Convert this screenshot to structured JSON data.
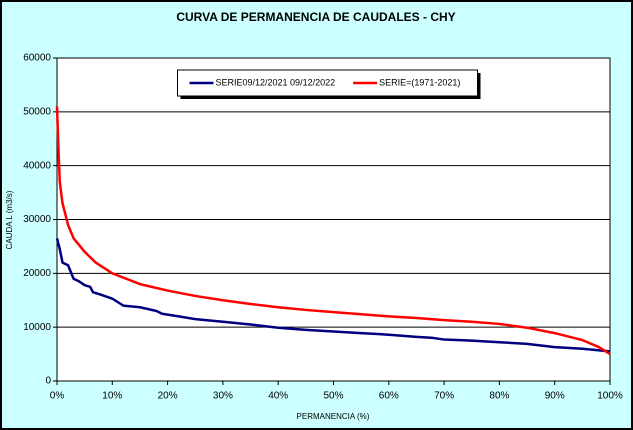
{
  "chart_data": {
    "type": "line",
    "title": "CURVA DE PERMANENCIA DE CAUDALES - CHY",
    "x_label": "PERMANENCIA (%)",
    "y_label": "CAUDA L (m3/s)",
    "xlim": [
      0,
      100
    ],
    "xticks": [
      {
        "value": 0,
        "label": "0%"
      },
      {
        "value": 10,
        "label": "10%"
      },
      {
        "value": 20,
        "label": "20%"
      },
      {
        "value": 30,
        "label": "30%"
      },
      {
        "value": 40,
        "label": "40%"
      },
      {
        "value": 50,
        "label": "50%"
      },
      {
        "value": 60,
        "label": "60%"
      },
      {
        "value": 70,
        "label": "70%"
      },
      {
        "value": 80,
        "label": "80%"
      },
      {
        "value": 90,
        "label": "90%"
      },
      {
        "value": 100,
        "label": "100%"
      }
    ],
    "ylim": [
      0,
      60000
    ],
    "yticks": [
      0,
      10000,
      20000,
      30000,
      40000,
      50000,
      60000
    ],
    "grid": true,
    "legend": "top",
    "series": [
      {
        "name": "SERIE09/12/2021 09/12/2022",
        "color": "#000080",
        "x": [
          0,
          0.5,
          1,
          2,
          3,
          4,
          5,
          6,
          6.5,
          8,
          10,
          12,
          15,
          18,
          19,
          22,
          25,
          30,
          35,
          40,
          45,
          50,
          55,
          60,
          65,
          68,
          70,
          75,
          80,
          85,
          90,
          95,
          100
        ],
        "values": [
          26500,
          24500,
          22000,
          21500,
          19000,
          18500,
          17800,
          17500,
          16500,
          16000,
          15300,
          14000,
          13700,
          13000,
          12500,
          12000,
          11500,
          11000,
          10500,
          9900,
          9500,
          9200,
          8900,
          8600,
          8200,
          8000,
          7700,
          7500,
          7200,
          6900,
          6300,
          6000,
          5500
        ]
      },
      {
        "name": "SERIE=(1971-2021)",
        "color": "#ff0000",
        "x": [
          0,
          0.3,
          0.5,
          1,
          2,
          3,
          5,
          7,
          10,
          15,
          20,
          25,
          30,
          35,
          40,
          45,
          50,
          55,
          60,
          65,
          70,
          75,
          80,
          85,
          90,
          95,
          98,
          100
        ],
        "values": [
          51000,
          42000,
          37000,
          33000,
          29000,
          26500,
          24000,
          22000,
          20000,
          18000,
          16800,
          15800,
          15000,
          14300,
          13700,
          13200,
          12800,
          12400,
          12000,
          11700,
          11300,
          11000,
          10600,
          9900,
          8900,
          7600,
          6300,
          5000
        ]
      }
    ]
  }
}
